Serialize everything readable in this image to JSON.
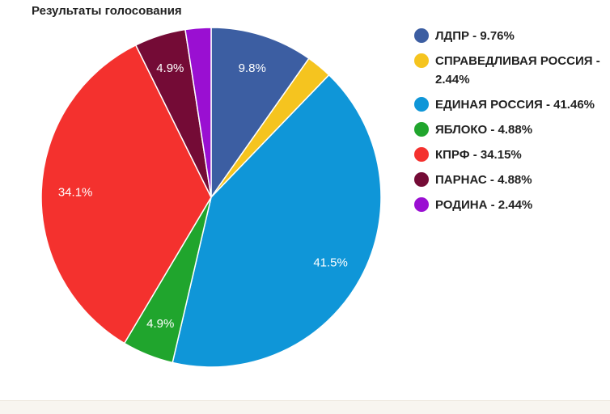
{
  "title": "Результаты голосования",
  "chart_data": {
    "type": "pie",
    "title": "Результаты голосования",
    "legend_position": "right",
    "slices": [
      {
        "name": "ЛДПР",
        "value": 9.76,
        "color": "#3c5ea2",
        "legend": "ЛДПР - 9.76%",
        "label": "9.8%"
      },
      {
        "name": "СПРАВЕДЛИВАЯ РОССИЯ",
        "value": 2.44,
        "color": "#f5c41f",
        "legend": "СПРАВЕДЛИВАЯ РОССИЯ - 2.44%",
        "label": ""
      },
      {
        "name": "ЕДИНАЯ РОССИЯ",
        "value": 41.46,
        "color": "#0f96d8",
        "legend": "ЕДИНАЯ РОССИЯ - 41.46%",
        "label": "41.5%"
      },
      {
        "name": "ЯБЛОКО",
        "value": 4.88,
        "color": "#20a52d",
        "legend": "ЯБЛОКО - 4.88%",
        "label": "4.9%"
      },
      {
        "name": "КПРФ",
        "value": 34.15,
        "color": "#f4312e",
        "legend": "КПРФ - 34.15%",
        "label": "34.1%"
      },
      {
        "name": "ПАРНАС",
        "value": 4.88,
        "color": "#740b36",
        "legend": "ПАРНАС - 4.88%",
        "label": "4.9%"
      },
      {
        "name": "РОДИНА",
        "value": 2.44,
        "color": "#9a0fd2",
        "legend": "РОДИНА - 2.44%",
        "label": ""
      }
    ]
  }
}
